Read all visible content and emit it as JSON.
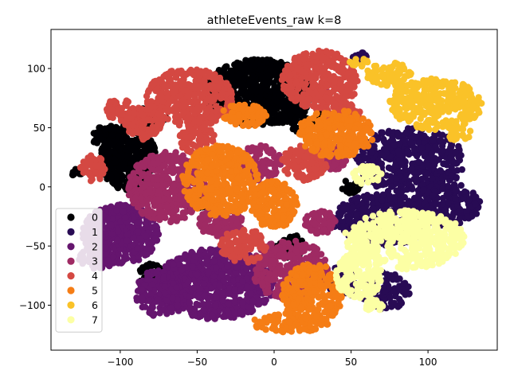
{
  "chart_data": {
    "type": "scatter",
    "title": "athleteEvents_raw k=8",
    "xlabel": "",
    "ylabel": "",
    "xlim": [
      -145,
      145
    ],
    "ylim": [
      -138,
      133
    ],
    "xticks": [
      -100,
      -50,
      0,
      50,
      100
    ],
    "yticks": [
      -100,
      -50,
      0,
      50,
      100
    ],
    "grid": false,
    "legend_position": "lower-left",
    "series": [
      {
        "name": "0",
        "color": "#000004",
        "regions": [
          {
            "cx": -10,
            "cy": 80,
            "rx": 35,
            "ry": 28,
            "n": 700
          },
          {
            "cx": -95,
            "cy": 25,
            "rx": 18,
            "ry": 28,
            "n": 350
          },
          {
            "cx": -128,
            "cy": 12,
            "rx": 4,
            "ry": 4,
            "n": 12
          },
          {
            "cx": -108,
            "cy": 42,
            "rx": 10,
            "ry": 10,
            "n": 60
          },
          {
            "cx": -80,
            "cy": 60,
            "rx": 10,
            "ry": 10,
            "n": 40
          },
          {
            "cx": 20,
            "cy": 55,
            "rx": 15,
            "ry": 10,
            "n": 60
          },
          {
            "cx": -50,
            "cy": -12,
            "rx": 8,
            "ry": 6,
            "n": 25
          },
          {
            "cx": 10,
            "cy": -50,
            "rx": 10,
            "ry": 10,
            "n": 45
          },
          {
            "cx": -80,
            "cy": -75,
            "rx": 8,
            "ry": 10,
            "n": 30
          },
          {
            "cx": 50,
            "cy": 0,
            "rx": 6,
            "ry": 6,
            "n": 20
          }
        ]
      },
      {
        "name": "1",
        "color": "#280b54",
        "regions": [
          {
            "cx": 88,
            "cy": 22,
            "rx": 36,
            "ry": 28,
            "n": 450
          },
          {
            "cx": 70,
            "cy": -28,
            "rx": 32,
            "ry": 22,
            "n": 320
          },
          {
            "cx": 112,
            "cy": -15,
            "rx": 22,
            "ry": 18,
            "n": 200
          },
          {
            "cx": 72,
            "cy": -88,
            "rx": 16,
            "ry": 16,
            "n": 90
          },
          {
            "cx": 45,
            "cy": -80,
            "rx": 10,
            "ry": 14,
            "n": 60
          },
          {
            "cx": 55,
            "cy": 110,
            "rx": 5,
            "ry": 4,
            "n": 15
          },
          {
            "cx": 20,
            "cy": -80,
            "rx": 8,
            "ry": 8,
            "n": 25
          }
        ]
      },
      {
        "name": "2",
        "color": "#65156e",
        "regions": [
          {
            "cx": -38,
            "cy": -82,
            "rx": 38,
            "ry": 30,
            "n": 750
          },
          {
            "cx": -100,
            "cy": -40,
            "rx": 25,
            "ry": 25,
            "n": 450
          },
          {
            "cx": -75,
            "cy": -90,
            "rx": 15,
            "ry": 20,
            "n": 150
          },
          {
            "cx": -115,
            "cy": -60,
            "rx": 12,
            "ry": 10,
            "n": 60
          }
        ]
      },
      {
        "name": "3",
        "color": "#9f2a63",
        "regions": [
          {
            "cx": -70,
            "cy": 0,
            "rx": 25,
            "ry": 30,
            "n": 400
          },
          {
            "cx": 10,
            "cy": -70,
            "rx": 25,
            "ry": 25,
            "n": 300
          },
          {
            "cx": -10,
            "cy": 20,
            "rx": 15,
            "ry": 15,
            "n": 120
          },
          {
            "cx": 35,
            "cy": 25,
            "rx": 12,
            "ry": 12,
            "n": 100
          },
          {
            "cx": -35,
            "cy": -30,
            "rx": 15,
            "ry": 12,
            "n": 120
          },
          {
            "cx": 30,
            "cy": -30,
            "rx": 10,
            "ry": 10,
            "n": 70
          },
          {
            "cx": 30,
            "cy": 80,
            "rx": 6,
            "ry": 6,
            "n": 20
          }
        ]
      },
      {
        "name": "4",
        "color": "#d44842",
        "regions": [
          {
            "cx": -55,
            "cy": 75,
            "rx": 28,
            "ry": 25,
            "n": 400
          },
          {
            "cx": 30,
            "cy": 90,
            "rx": 25,
            "ry": 25,
            "n": 350
          },
          {
            "cx": -85,
            "cy": 55,
            "rx": 12,
            "ry": 15,
            "n": 120
          },
          {
            "cx": -118,
            "cy": 15,
            "rx": 8,
            "ry": 12,
            "n": 60
          },
          {
            "cx": -100,
            "cy": 65,
            "rx": 10,
            "ry": 10,
            "n": 50
          },
          {
            "cx": 20,
            "cy": 20,
            "rx": 15,
            "ry": 15,
            "n": 120
          },
          {
            "cx": -20,
            "cy": -50,
            "rx": 15,
            "ry": 15,
            "n": 100
          },
          {
            "cx": -50,
            "cy": 40,
            "rx": 12,
            "ry": 12,
            "n": 80
          },
          {
            "cx": 45,
            "cy": 60,
            "rx": 12,
            "ry": 12,
            "n": 80
          }
        ]
      },
      {
        "name": "5",
        "color": "#f57d15",
        "regions": [
          {
            "cx": -35,
            "cy": 5,
            "rx": 25,
            "ry": 30,
            "n": 400
          },
          {
            "cx": 40,
            "cy": 45,
            "rx": 25,
            "ry": 20,
            "n": 300
          },
          {
            "cx": 0,
            "cy": -15,
            "rx": 15,
            "ry": 20,
            "n": 200
          },
          {
            "cx": 25,
            "cy": -90,
            "rx": 20,
            "ry": 25,
            "n": 250
          },
          {
            "cx": 10,
            "cy": -115,
            "rx": 25,
            "ry": 8,
            "n": 100
          },
          {
            "cx": -20,
            "cy": 60,
            "rx": 15,
            "ry": 10,
            "n": 80
          }
        ]
      },
      {
        "name": "6",
        "color": "#fac228",
        "regions": [
          {
            "cx": 105,
            "cy": 70,
            "rx": 30,
            "ry": 22,
            "n": 300
          },
          {
            "cx": 75,
            "cy": 95,
            "rx": 15,
            "ry": 10,
            "n": 80
          },
          {
            "cx": 120,
            "cy": 45,
            "rx": 8,
            "ry": 6,
            "n": 25
          },
          {
            "cx": 55,
            "cy": 105,
            "rx": 6,
            "ry": 4,
            "n": 12
          }
        ]
      },
      {
        "name": "7",
        "color": "#fcffa4",
        "regions": [
          {
            "cx": 85,
            "cy": -45,
            "rx": 40,
            "ry": 25,
            "n": 450
          },
          {
            "cx": 55,
            "cy": -75,
            "rx": 15,
            "ry": 20,
            "n": 150
          },
          {
            "cx": 60,
            "cy": 10,
            "rx": 10,
            "ry": 8,
            "n": 40
          },
          {
            "cx": 65,
            "cy": -100,
            "rx": 8,
            "ry": 5,
            "n": 25
          }
        ]
      }
    ]
  }
}
